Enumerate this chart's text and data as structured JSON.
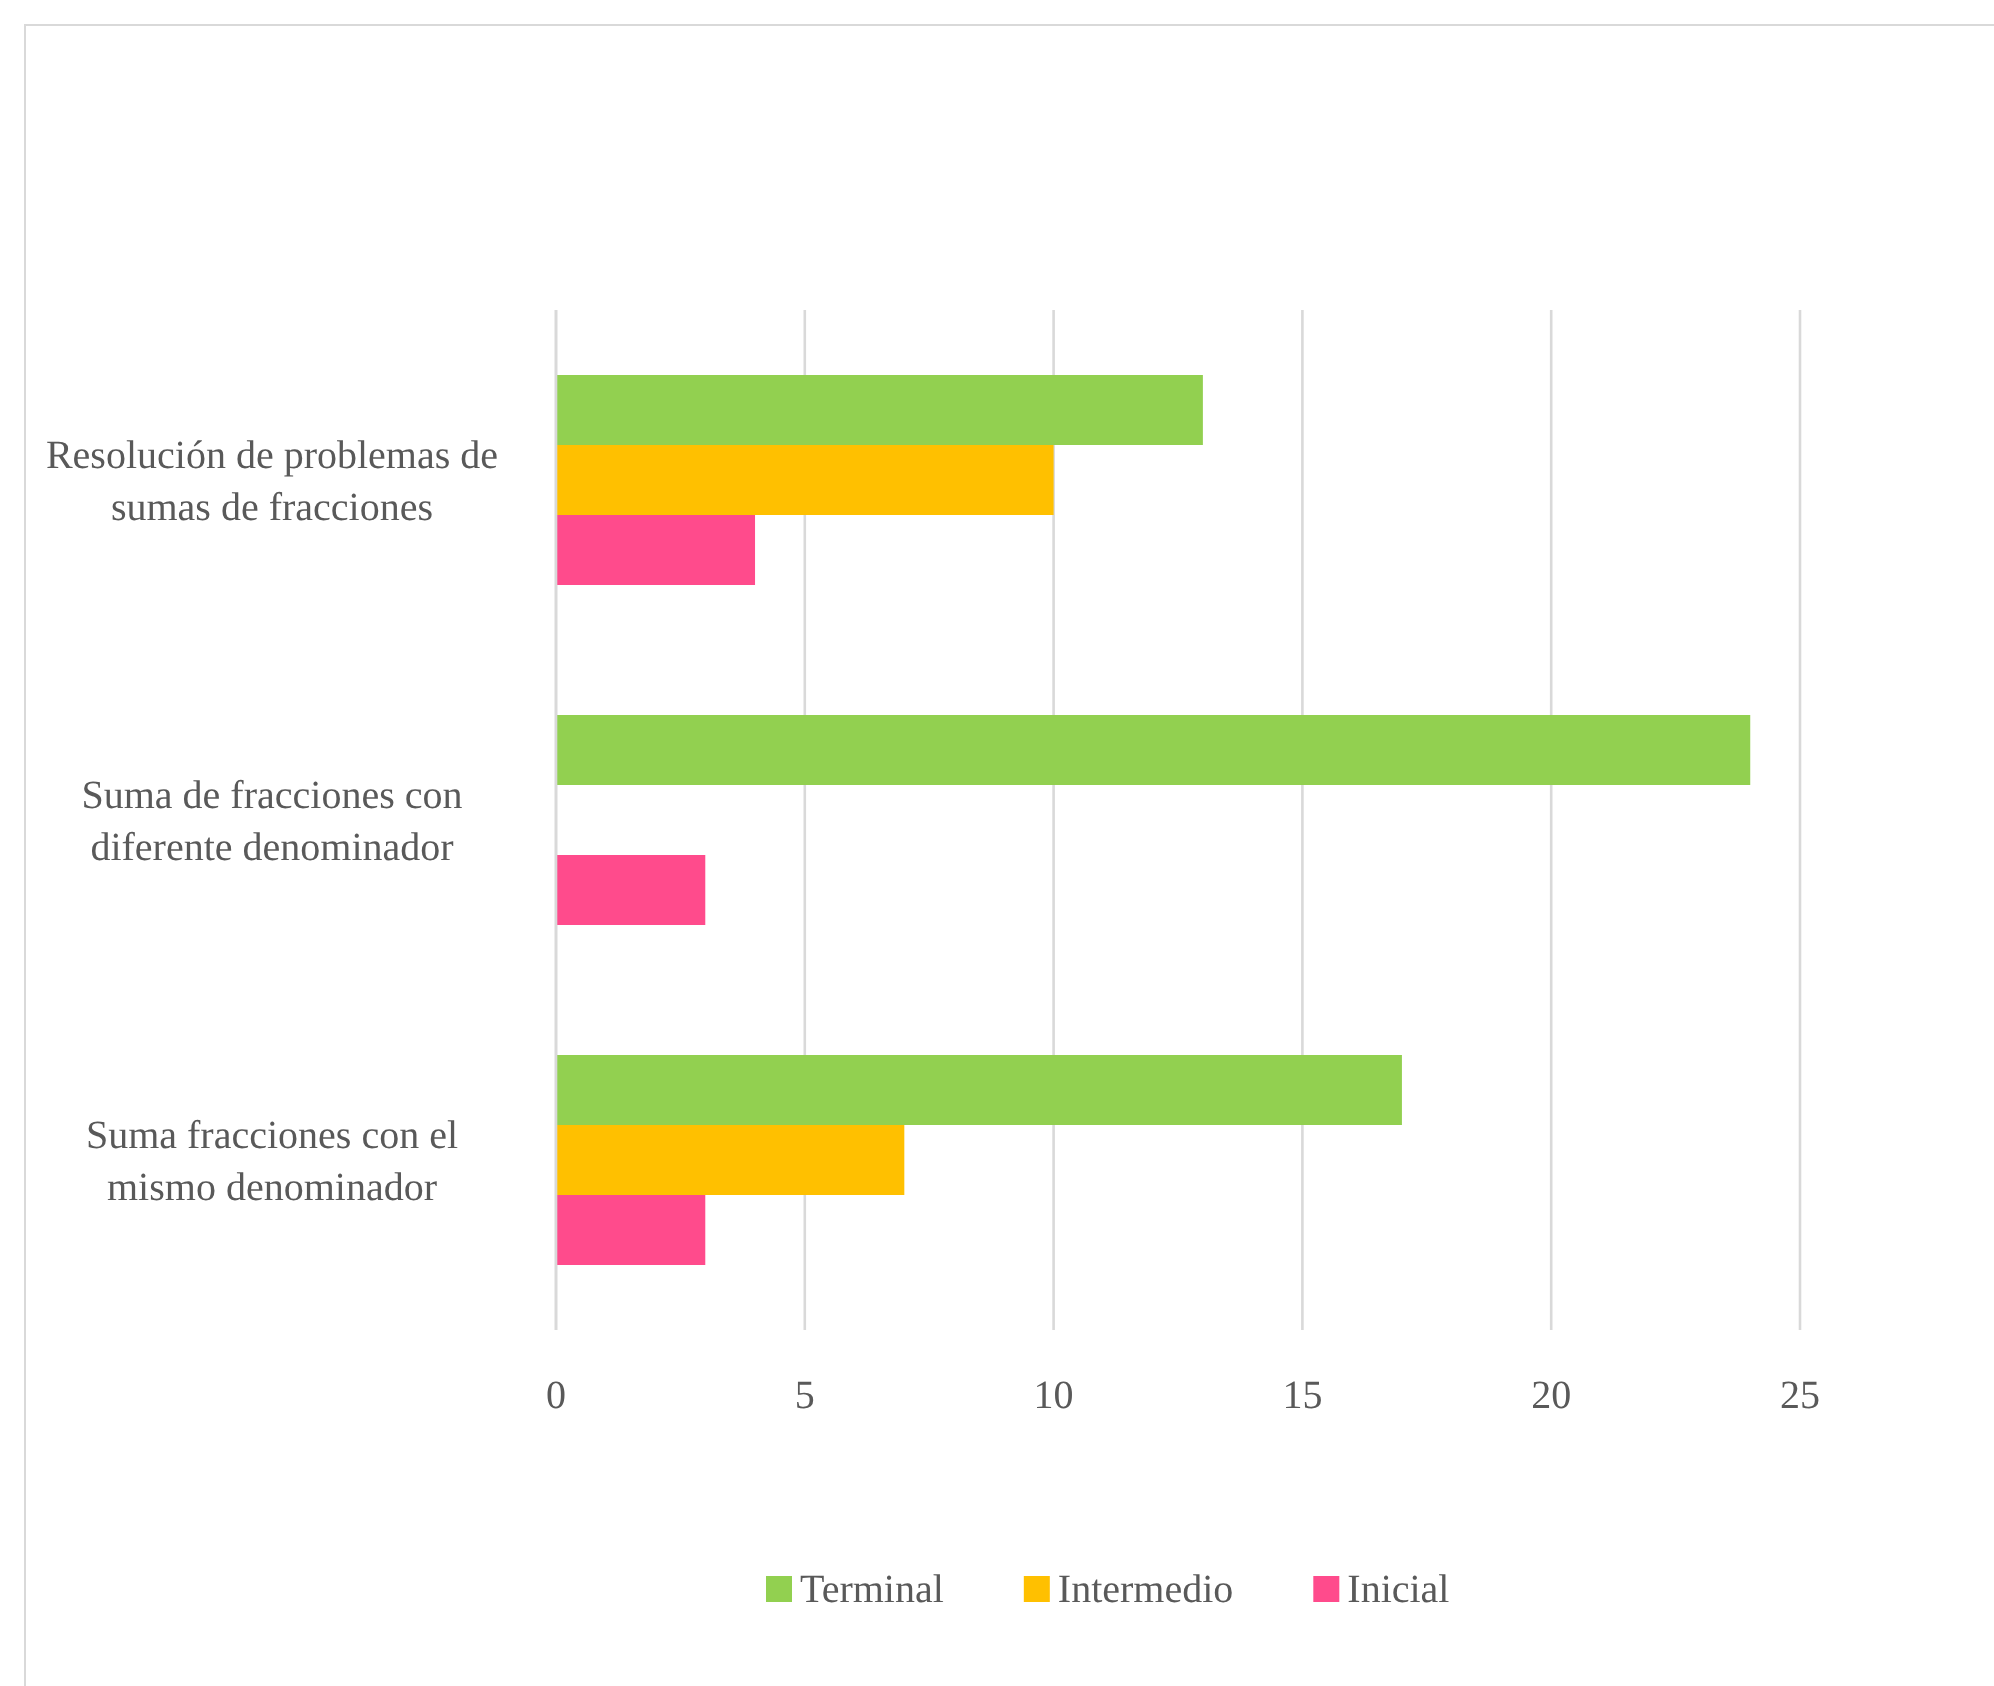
{
  "chart_data": {
    "type": "bar",
    "orientation": "horizontal",
    "categories": [
      "Resolución de problemas de sumas de fracciones",
      "Suma de fracciones con diferente denominador",
      "Suma fracciones con el mismo denominador"
    ],
    "series": [
      {
        "name": "Terminal",
        "color": "#92d050",
        "values": [
          13,
          24,
          17
        ]
      },
      {
        "name": "Intermedio",
        "color": "#ffc000",
        "values": [
          10,
          null,
          7
        ]
      },
      {
        "name": "Inicial",
        "color": "#ff4b8c",
        "values": [
          4,
          3,
          3
        ]
      }
    ],
    "xlim": [
      0,
      25
    ],
    "xticks": [
      0,
      5,
      10,
      15,
      20,
      25
    ],
    "grid": "x",
    "legend": "bottom"
  }
}
